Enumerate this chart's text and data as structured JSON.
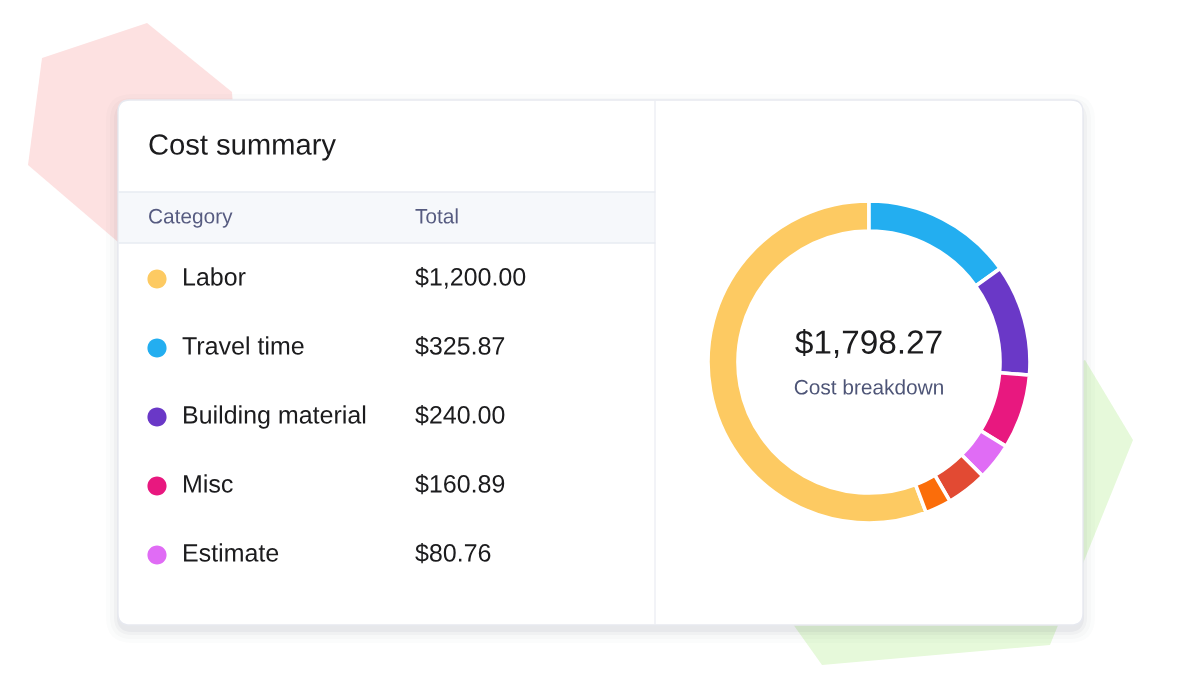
{
  "chart_data": {
    "type": "donut",
    "title": "Cost summary",
    "legend_title": "Category",
    "categories": [
      "Labor",
      "Travel time",
      "Building material",
      "Misc",
      "Estimate",
      null,
      null
    ],
    "values": [
      1200,
      325.87,
      240,
      160.89,
      80.76,
      88,
      56
    ],
    "colors": [
      "#fdca62",
      "#23aef0",
      "#6a38c7",
      "#e8187f",
      "#e06cf5",
      "#e24a33",
      "#fb6d0a"
    ],
    "value_labels": [
      "$1,200.00",
      "$325.87",
      "$240.00",
      "$160.89",
      "$80.76",
      null,
      null
    ],
    "legend": "left",
    "annotations": [
      "Total",
      "$1,798.27",
      "Cost breakdown"
    ]
  }
}
